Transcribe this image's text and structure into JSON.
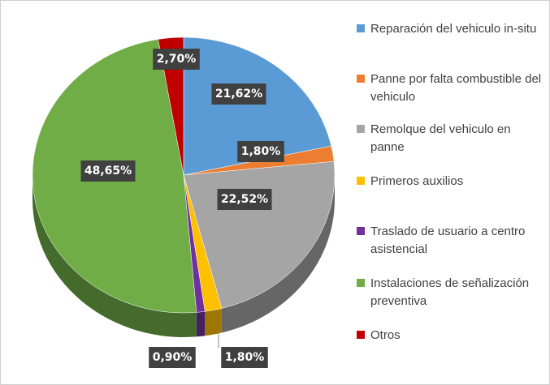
{
  "chart_data": {
    "type": "pie",
    "categories": [
      "Reparación del vehiculo in-situ",
      "Panne por falta combustible del vehiculo",
      "Remolque del vehiculo en panne",
      "Primeros auxilios",
      "Traslado de usuario a centro asistencial",
      "Instalaciones de señalización preventiva",
      "Otros"
    ],
    "values": [
      21.62,
      1.8,
      22.52,
      1.8,
      0.9,
      48.65,
      2.7
    ],
    "value_labels": [
      "21,62%",
      "1,80%",
      "22,52%",
      "1,80%",
      "0,90%",
      "48,65%",
      "2,70%"
    ],
    "colors": [
      "#5b9bd5",
      "#ed7d31",
      "#a5a5a5",
      "#ffc000",
      "#7030a0",
      "#70ad47",
      "#c00000"
    ]
  }
}
